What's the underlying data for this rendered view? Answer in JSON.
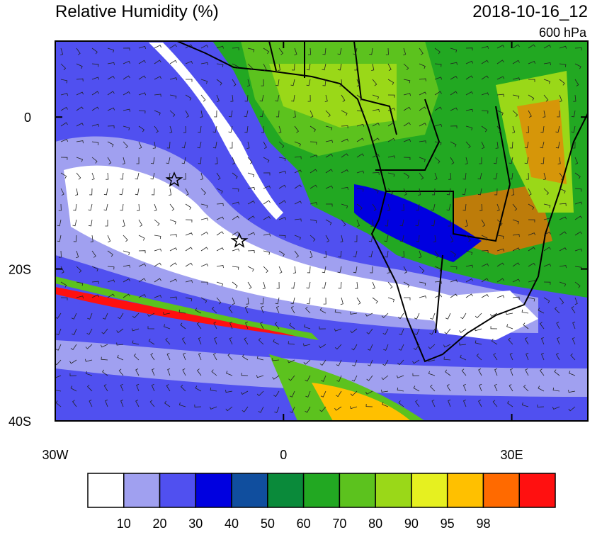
{
  "header": {
    "title": "Relative Humidity (%)",
    "date": "2018-10-16_12",
    "level": "600 hPa"
  },
  "map": {
    "lon_range": [
      -30,
      40
    ],
    "lat_range": [
      -40,
      10
    ],
    "lat_ticks": [
      {
        "value": 0,
        "label": "0"
      },
      {
        "value": -20,
        "label": "20S"
      },
      {
        "value": -40,
        "label": "40S"
      }
    ],
    "lon_ticks": [
      {
        "value": -30,
        "label": "30W"
      },
      {
        "value": 0,
        "label": "0"
      },
      {
        "value": 30,
        "label": "30E"
      }
    ]
  },
  "colorbar": {
    "levels": [
      10,
      20,
      30,
      40,
      50,
      60,
      70,
      80,
      90,
      95,
      98
    ],
    "colors": [
      "#ffffff",
      "#a0a0f0",
      "#5050f0",
      "#0000e0",
      "#104e9e",
      "#0a8a3a",
      "#22a822",
      "#5cc21e",
      "#9ad818",
      "#e6f020",
      "#ffc000",
      "#ff6a00",
      "#ff1010"
    ]
  }
}
